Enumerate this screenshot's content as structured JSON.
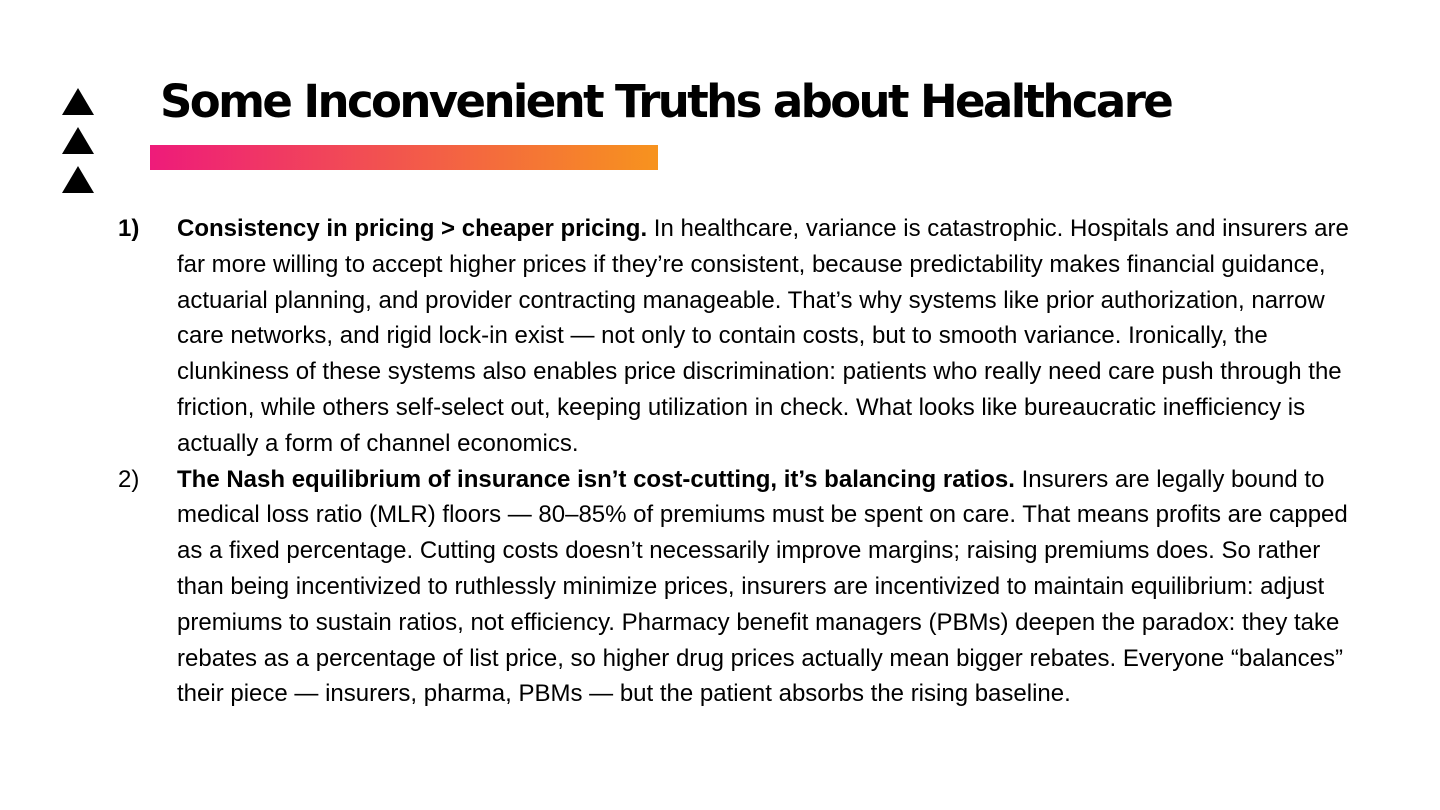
{
  "slide": {
    "title": "Some Inconvenient Truths about Healthcare",
    "accent_gradient": [
      "#ee1b7a",
      "#f7931e"
    ],
    "bullet_icon": "triangle-up-icon"
  },
  "points": [
    {
      "number": "1)",
      "lead": "Consistency in pricing > cheaper pricing.",
      "text": "In healthcare, variance is catastrophic. Hospitals and insurers are far more willing to accept higher prices if they’re consistent, because predictability makes financial guidance, actuarial planning, and provider contracting manageable. That’s why systems like prior authorization, narrow care networks, and rigid lock-in exist — not only to contain costs, but to smooth variance. Ironically, the clunkiness of these systems also enables price discrimination: patients who really need care push through the friction, while others self-select out, keeping utilization in check. What looks like bureaucratic inefficiency is actually a form of channel economics."
    },
    {
      "number": "2)",
      "lead": "The Nash equilibrium of insurance isn’t cost-cutting, it’s balancing ratios.",
      "text": "Insurers are legally bound to medical loss ratio (MLR) floors — 80–85% of premiums must be spent on care. That means profits are capped as a fixed percentage. Cutting costs doesn’t necessarily improve margins; raising premiums does. So rather than being incentivized to ruthlessly minimize prices, insurers are incentivized to maintain equilibrium: adjust premiums to sustain ratios, not efficiency. Pharmacy benefit managers (PBMs) deepen the paradox: they take rebates as a percentage of list price, so higher drug prices actually mean bigger rebates. Everyone “balances” their piece — insurers, pharma, PBMs — but the patient absorbs the rising baseline."
    }
  ]
}
